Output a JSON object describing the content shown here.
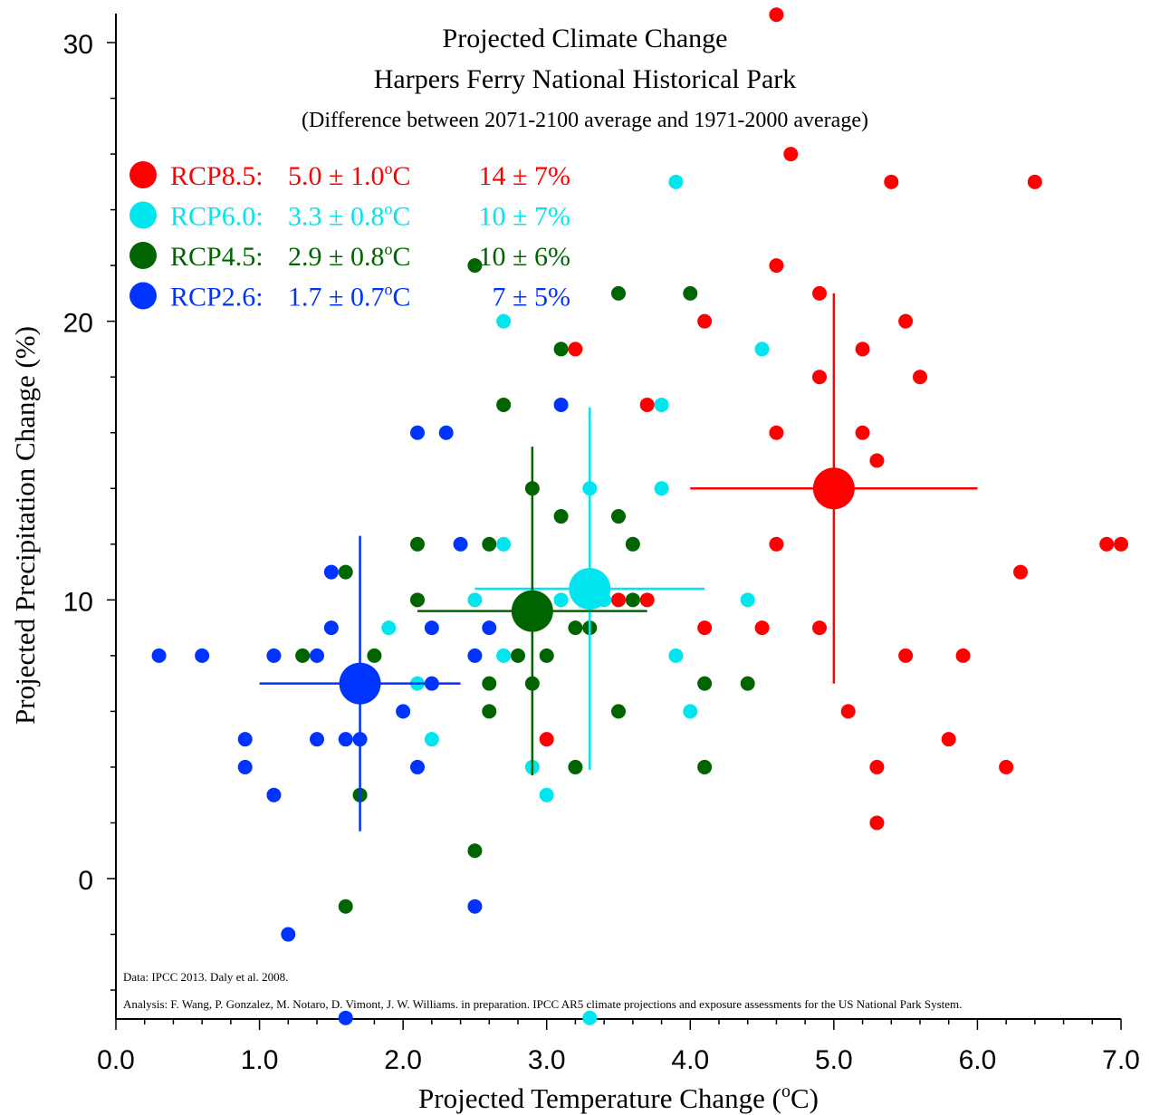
{
  "chart_data": {
    "type": "scatter",
    "title": "Projected Climate Change",
    "subtitle": "Harpers Ferry National Historical Park",
    "subtitle2": "(Difference between 2071-2100 average and 1971-2000 average)",
    "xlabel": "Projected Temperature Change (",
    "xlabel_unit": "o",
    "xlabel_end": "C)",
    "ylabel": "Projected Precipitation Change (%)",
    "xlim": [
      0,
      7
    ],
    "ylim": [
      -5,
      31
    ],
    "x_ticks": [
      0,
      1,
      2,
      3,
      4,
      5,
      6,
      7
    ],
    "x_tick_labels": [
      "0.0",
      "1.0",
      "2.0",
      "3.0",
      "4.0",
      "5.0",
      "6.0",
      "7.0"
    ],
    "y_ticks": [
      0,
      10,
      20,
      30
    ],
    "y_tick_labels": [
      "0",
      "10",
      "20",
      "30"
    ],
    "legend_position": "top-left",
    "notes": {
      "data_source": "Data: IPCC 2013. Daly et al. 2008.",
      "analysis": "Analysis: F. Wang, P. Gonzalez, M. Notaro, D. Vimont, J. W. Williams. in preparation. IPCC AR5 climate projections and exposure assessments for the US National Park System."
    },
    "series": [
      {
        "name": "RCP8.5",
        "color": "#ff0000",
        "legend": {
          "label": "RCP8.5:",
          "temp": "5.0",
          "temp_pm": "1.0",
          "precip": "14",
          "precip_pm": "7%"
        },
        "mean": {
          "x": 5.0,
          "y": 14,
          "x_sd": 1.0,
          "y_sd": 7
        },
        "points": [
          [
            4.6,
            31
          ],
          [
            4.7,
            26
          ],
          [
            5.4,
            25
          ],
          [
            6.4,
            25
          ],
          [
            4.6,
            22
          ],
          [
            4.9,
            21
          ],
          [
            4.1,
            20
          ],
          [
            5.5,
            20
          ],
          [
            3.2,
            19
          ],
          [
            5.2,
            19
          ],
          [
            4.9,
            18
          ],
          [
            5.6,
            18
          ],
          [
            3.7,
            17
          ],
          [
            4.6,
            16
          ],
          [
            5.2,
            16
          ],
          [
            5.3,
            15
          ],
          [
            4.6,
            12
          ],
          [
            6.9,
            12
          ],
          [
            7.0,
            12
          ],
          [
            6.3,
            11
          ],
          [
            3.5,
            10
          ],
          [
            3.7,
            10
          ],
          [
            4.1,
            9
          ],
          [
            4.5,
            9
          ],
          [
            4.9,
            9
          ],
          [
            5.5,
            8
          ],
          [
            5.9,
            8
          ],
          [
            5.1,
            6
          ],
          [
            3.0,
            5
          ],
          [
            5.8,
            5
          ],
          [
            5.3,
            4
          ],
          [
            6.2,
            4
          ],
          [
            5.3,
            2
          ]
        ]
      },
      {
        "name": "RCP6.0",
        "color": "#00e5ee",
        "legend": {
          "label": "RCP6.0:",
          "temp": "3.3",
          "temp_pm": "0.8",
          "precip": "10",
          "precip_pm": "7%"
        },
        "mean": {
          "x": 3.3,
          "y": 10.4,
          "x_sd": 0.8,
          "y_sd": 6.5
        },
        "points": [
          [
            3.9,
            25
          ],
          [
            2.7,
            20
          ],
          [
            4.5,
            19
          ],
          [
            3.8,
            17
          ],
          [
            3.3,
            14
          ],
          [
            3.8,
            14
          ],
          [
            2.7,
            12
          ],
          [
            2.5,
            10
          ],
          [
            3.1,
            10
          ],
          [
            3.4,
            10
          ],
          [
            4.4,
            10
          ],
          [
            1.9,
            9
          ],
          [
            2.7,
            8
          ],
          [
            3.9,
            8
          ],
          [
            2.1,
            7
          ],
          [
            4.0,
            6
          ],
          [
            2.2,
            5
          ],
          [
            2.9,
            4
          ],
          [
            3.0,
            3
          ],
          [
            3.3,
            -5
          ]
        ]
      },
      {
        "name": "RCP4.5",
        "color": "#006400",
        "legend": {
          "label": "RCP4.5:",
          "temp": "2.9",
          "temp_pm": "0.8",
          "precip": "10",
          "precip_pm": "6%"
        },
        "mean": {
          "x": 2.9,
          "y": 9.6,
          "x_sd": 0.8,
          "y_sd": 5.9
        },
        "points": [
          [
            2.5,
            22
          ],
          [
            3.5,
            21
          ],
          [
            4.0,
            21
          ],
          [
            3.1,
            19
          ],
          [
            2.7,
            17
          ],
          [
            2.9,
            14
          ],
          [
            3.1,
            13
          ],
          [
            3.5,
            13
          ],
          [
            2.1,
            12
          ],
          [
            2.6,
            12
          ],
          [
            3.6,
            12
          ],
          [
            1.6,
            11
          ],
          [
            2.1,
            10
          ],
          [
            3.6,
            10
          ],
          [
            3.2,
            9
          ],
          [
            3.3,
            9
          ],
          [
            1.3,
            8
          ],
          [
            1.8,
            8
          ],
          [
            2.8,
            8
          ],
          [
            3.0,
            8
          ],
          [
            2.6,
            7
          ],
          [
            2.9,
            7
          ],
          [
            4.1,
            7
          ],
          [
            4.4,
            7
          ],
          [
            2.6,
            6
          ],
          [
            3.5,
            6
          ],
          [
            3.2,
            4
          ],
          [
            4.1,
            4
          ],
          [
            1.7,
            3
          ],
          [
            2.5,
            1
          ],
          [
            1.6,
            -1
          ]
        ]
      },
      {
        "name": "RCP2.6",
        "color": "#0033ff",
        "legend": {
          "label": "RCP2.6:",
          "temp": "1.7",
          "temp_pm": "0.7",
          "precip": "7",
          "precip_pm": "5%"
        },
        "mean": {
          "x": 1.7,
          "y": 7,
          "x_sd": 0.7,
          "y_sd": 5.3
        },
        "points": [
          [
            3.1,
            17
          ],
          [
            2.1,
            16
          ],
          [
            2.3,
            16
          ],
          [
            2.4,
            12
          ],
          [
            1.5,
            11
          ],
          [
            1.5,
            9
          ],
          [
            2.2,
            9
          ],
          [
            2.6,
            9
          ],
          [
            0.3,
            8
          ],
          [
            0.6,
            8
          ],
          [
            1.1,
            8
          ],
          [
            1.4,
            8
          ],
          [
            2.5,
            8
          ],
          [
            2.2,
            7
          ],
          [
            2.0,
            6
          ],
          [
            0.9,
            5
          ],
          [
            1.4,
            5
          ],
          [
            1.6,
            5
          ],
          [
            1.7,
            5
          ],
          [
            0.9,
            4
          ],
          [
            2.1,
            4
          ],
          [
            1.1,
            3
          ],
          [
            2.5,
            -1
          ],
          [
            1.2,
            -2
          ],
          [
            1.6,
            -5
          ]
        ]
      }
    ]
  }
}
